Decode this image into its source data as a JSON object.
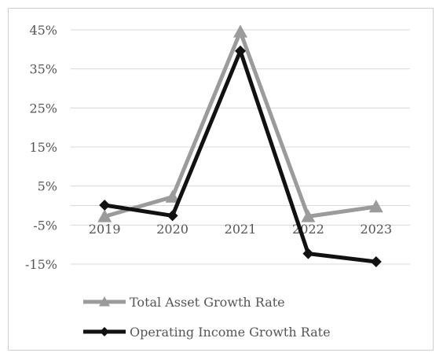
{
  "chart_data": {
    "type": "line",
    "categories": [
      "2019",
      "2020",
      "2021",
      "2022",
      "2023"
    ],
    "yticks": [
      "45%",
      "35%",
      "25%",
      "15%",
      "5%",
      "-5%",
      "-15%"
    ],
    "ylim": [
      -15,
      45
    ],
    "grid": true,
    "legend_position": "bottom",
    "series": [
      {
        "name": "Total Asset Growth Rate",
        "values": [
          -2.8,
          2.2,
          44.5,
          -2.8,
          -0.3
        ],
        "color": "#9b9b9b",
        "marker": "triangle"
      },
      {
        "name": "Operating Income Growth Rate",
        "values": [
          0.1,
          -2.6,
          39.6,
          -12.3,
          -14.4
        ],
        "color": "#111111",
        "marker": "diamond"
      }
    ]
  }
}
